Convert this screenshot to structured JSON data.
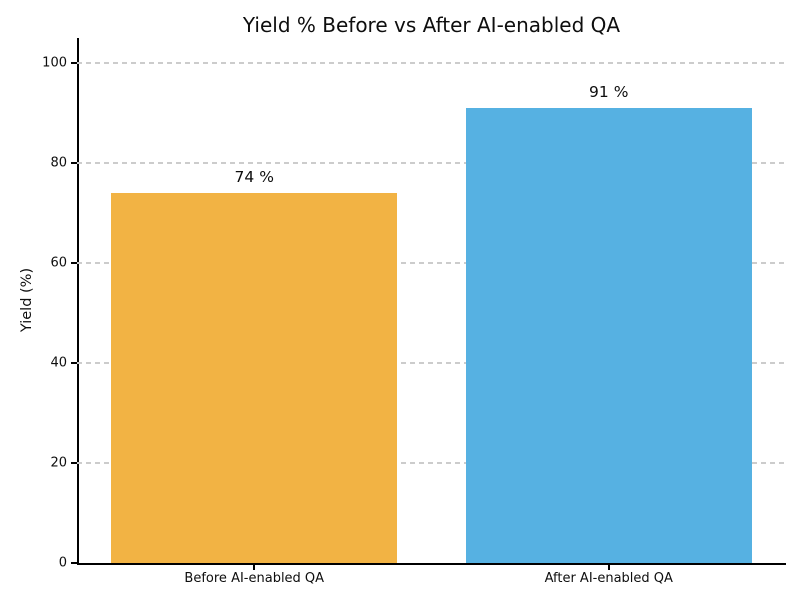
{
  "chart_data": {
    "type": "bar",
    "title": "Yield % Before vs After AI-enabled QA",
    "xlabel": "",
    "ylabel": "Yield (%)",
    "categories": [
      "Before AI-enabled QA",
      "After AI-enabled QA"
    ],
    "values": [
      74,
      91
    ],
    "value_labels": [
      "74 %",
      "91 %"
    ],
    "bar_colors": [
      "#F2B344",
      "#56B1E2"
    ],
    "ylim": [
      0,
      105
    ],
    "yticks": [
      0,
      20,
      40,
      60,
      80,
      100
    ],
    "grid": {
      "axis": "y",
      "style": "dashed",
      "color": "#cccccc"
    },
    "legend": "none",
    "text_color": "#0e0e0e",
    "background": "#ffffff"
  }
}
